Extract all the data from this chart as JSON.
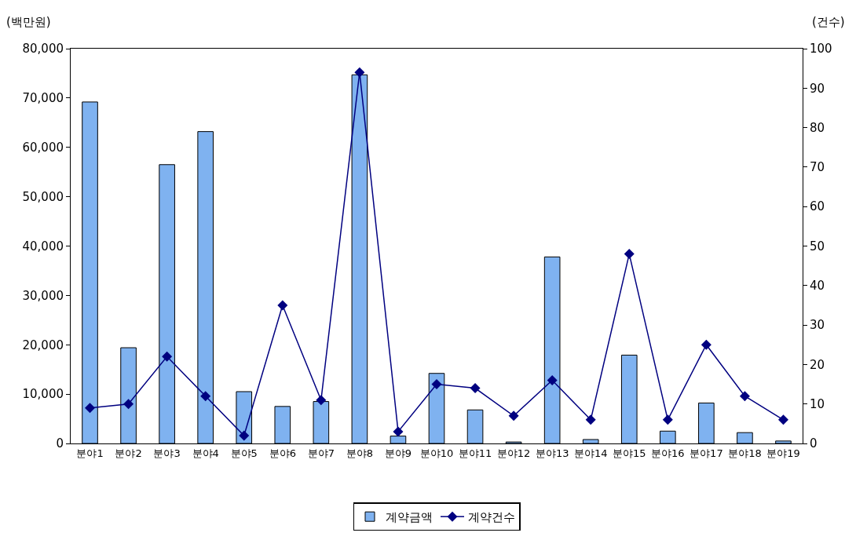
{
  "chart_data": {
    "type": "bar",
    "ylabel": "(백만원)",
    "y2label": "(건수)",
    "categories": [
      "분야1",
      "분야2",
      "분야3",
      "분야4",
      "분야5",
      "분야6",
      "분야7",
      "분야8",
      "분야9",
      "분야10",
      "분야11",
      "분야12",
      "분야13",
      "분야14",
      "분야15",
      "분야16",
      "분야17",
      "분야18",
      "분야19"
    ],
    "series": [
      {
        "name": "계약금액",
        "color": "#7fb2f0",
        "values": [
          69200,
          19400,
          56500,
          63200,
          10500,
          7500,
          8500,
          74700,
          1500,
          14200,
          6800,
          300,
          37800,
          800,
          17900,
          2500,
          8200,
          2200,
          500
        ]
      },
      {
        "name": "계약건수",
        "type": "line",
        "axis": "y2",
        "color": "#000080",
        "marker": "diamond",
        "values": [
          9,
          10,
          22,
          12,
          2,
          35,
          11,
          94,
          3,
          15,
          14,
          7,
          16,
          6,
          48,
          6,
          25,
          12,
          6
        ]
      }
    ],
    "ylim": [
      0,
      80000
    ],
    "yticks": [
      0,
      {
        "value": 10000,
        "label": "10,000"
      },
      {
        "value": 20000,
        "label": "20,000"
      },
      {
        "value": 30000,
        "label": "30,000"
      },
      {
        "value": 40000,
        "label": "40,000"
      },
      {
        "value": 50000,
        "label": "50,000"
      },
      {
        "value": 60000,
        "label": "60,000"
      },
      {
        "value": 70000,
        "label": "70,000"
      },
      {
        "value": 80000,
        "label": "80,000"
      }
    ],
    "y2lim": [
      0,
      100
    ],
    "y2ticks": [
      0,
      10,
      20,
      30,
      40,
      50,
      60,
      70,
      80,
      90,
      100
    ],
    "grid": false,
    "legend": "bottom"
  }
}
